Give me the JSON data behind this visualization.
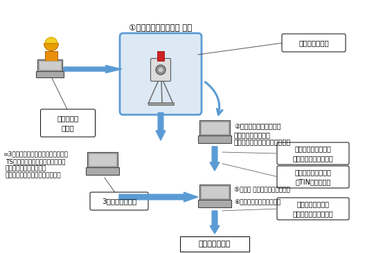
{
  "bg_color": "#ffffff",
  "arrow_color": "#5b9bd5",
  "scanner_box_edge": "#5b9bd5",
  "scanner_box_fill": "#dce9f5",
  "label_scanner": "①レーザースキャナー 本体",
  "label_kijun": "基準点座標\nデータ",
  "label_keisoku": "計測点群データ",
  "label_tengun_line1": "②点群処理ソフトウェア",
  "label_tengun_line2": "・点群データの合成",
  "label_tengun_line3": "・点群データのフィルタリング",
  "label_point_file_line1": "出来形評価用データ",
  "label_point_file_line2": "（ポイントファイル）",
  "label_tin_file_line1": "出来形計測データ等",
  "label_tin_file_line2": "（TINファイル）",
  "label_3d_soft_line1": "≃3次元設計データ作成ソフトウェア",
  "label_3d_soft_line2": "TS出来形管理用の基本設計データ",
  "label_3d_soft_line3": "利用・変抛しても良い。",
  "label_3d_soft_line4": "曲線部などの補完に留意すること",
  "label_3d_data": "3次元設計データ",
  "label_chohyo": "⑤出来形 帳票作成ソフトウェア",
  "label_kousa": "⑥出来高算出ソフトウェア",
  "label_kanri_data_line1": "出来形管理データ",
  "label_kanri_data_line2": "（設計と出来形の差）",
  "label_kanri_shiryo": "出来形管理資料"
}
